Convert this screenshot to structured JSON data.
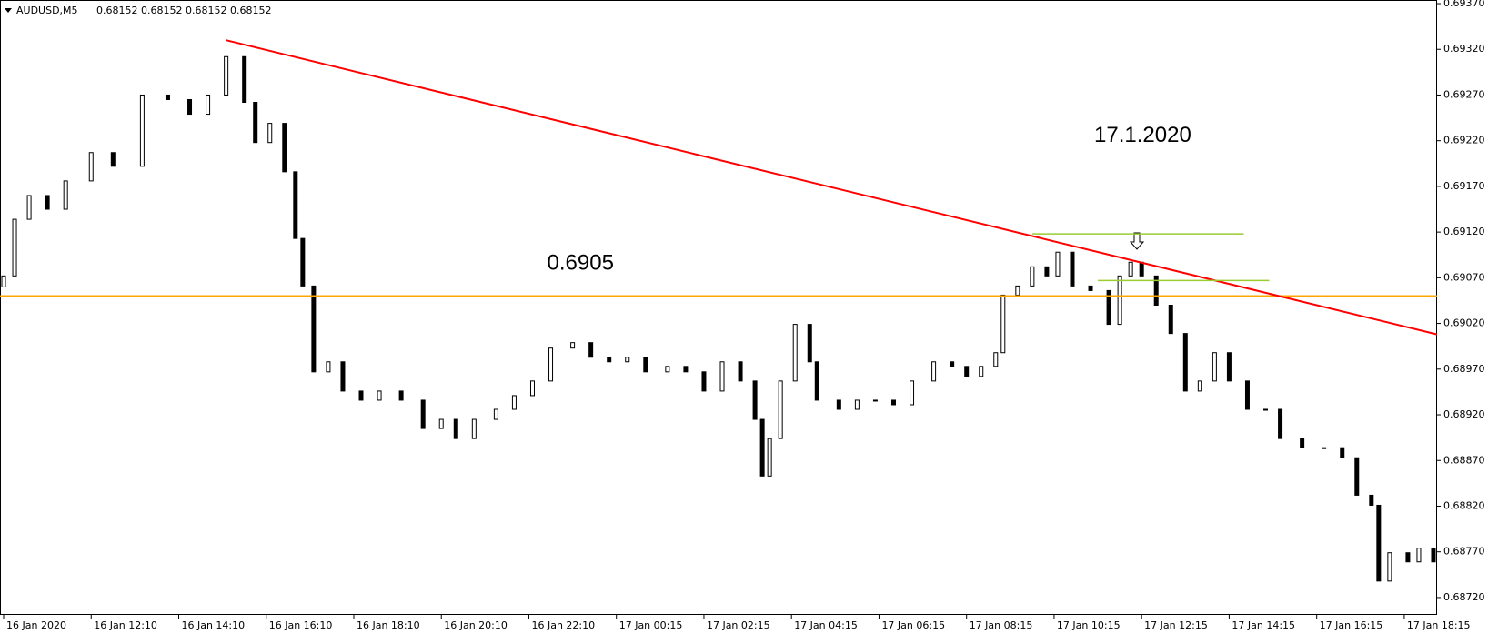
{
  "chart_data": {
    "type": "candlestick",
    "symbol": "AUDUSD,M5",
    "quote": "0.68152 0.68152 0.68152 0.68152",
    "annotations": [
      {
        "text": "17.1.2020",
        "x": 300,
        "y": 0.69225
      },
      {
        "text": "0.6905",
        "x": 150,
        "y": 0.69085
      }
    ],
    "x": [
      1,
      4,
      8,
      13,
      18,
      25,
      31,
      39,
      46,
      52,
      57,
      62,
      67,
      70,
      74,
      78,
      81,
      83,
      86,
      90,
      94,
      99,
      104,
      110,
      116,
      121,
      125,
      130,
      136,
      141,
      146,
      151,
      157,
      162,
      167,
      172,
      177,
      183,
      188,
      193,
      198,
      203,
      207,
      209,
      211,
      214,
      218,
      222,
      224,
      230,
      235,
      240,
      245,
      250,
      256,
      261,
      265,
      269,
      273,
      275,
      279,
      283,
      287,
      290,
      294,
      299,
      304,
      307,
      310,
      313,
      317,
      321,
      325,
      329,
      333,
      337,
      342,
      347,
      351,
      357,
      363,
      368,
      372,
      376,
      378,
      381,
      386,
      389,
      393
    ],
    "open": [
      0.6906,
      0.69072,
      0.69134,
      0.6916,
      0.69145,
      0.69176,
      0.69207,
      0.69192,
      0.6927,
      0.69265,
      0.69249,
      0.6927,
      0.69312,
      0.69262,
      0.69218,
      0.69239,
      0.69186,
      0.69113,
      0.69061,
      0.68967,
      0.68978,
      0.68946,
      0.68936,
      0.68946,
      0.68936,
      0.68905,
      0.68915,
      0.68894,
      0.68915,
      0.68926,
      0.68941,
      0.68957,
      0.68993,
      0.68999,
      0.68983,
      0.68978,
      0.68983,
      0.68967,
      0.68973,
      0.68967,
      0.68946,
      0.68978,
      0.68957,
      0.68915,
      0.68853,
      0.68894,
      0.68957,
      0.69019,
      0.68978,
      0.68936,
      0.68926,
      0.68936,
      0.68936,
      0.68931,
      0.68957,
      0.68978,
      0.68973,
      0.68962,
      0.68973,
      0.68988,
      0.69051,
      0.69061,
      0.69082,
      0.69072,
      0.69098,
      0.69061,
      0.69056,
      0.69019,
      0.69072,
      0.69087,
      0.69072,
      0.6904,
      0.69009,
      0.68946,
      0.68957,
      0.68988,
      0.68957,
      0.68926,
      0.68926,
      0.68894,
      0.68884,
      0.68884,
      0.68873,
      0.68832,
      0.68821,
      0.68738,
      0.68769,
      0.68759,
      0.68774
    ],
    "close": [
      0.69072,
      0.69134,
      0.6916,
      0.69145,
      0.69176,
      0.69207,
      0.69192,
      0.6927,
      0.69265,
      0.69249,
      0.6927,
      0.69312,
      0.69262,
      0.69218,
      0.69239,
      0.69186,
      0.69113,
      0.69061,
      0.68967,
      0.68978,
      0.68946,
      0.68936,
      0.68946,
      0.68936,
      0.68905,
      0.68915,
      0.68894,
      0.68915,
      0.68926,
      0.68941,
      0.68957,
      0.68993,
      0.68999,
      0.68983,
      0.68978,
      0.68983,
      0.68967,
      0.68973,
      0.68967,
      0.68946,
      0.68978,
      0.68957,
      0.68915,
      0.68853,
      0.68894,
      0.68957,
      0.69019,
      0.68978,
      0.68936,
      0.68926,
      0.68936,
      0.68936,
      0.68931,
      0.68957,
      0.68978,
      0.68973,
      0.68962,
      0.68973,
      0.68988,
      0.69051,
      0.69061,
      0.69082,
      0.69072,
      0.69098,
      0.69061,
      0.69056,
      0.69019,
      0.69072,
      0.69087,
      0.69072,
      0.6904,
      0.69009,
      0.68946,
      0.68957,
      0.68988,
      0.68957,
      0.68926,
      0.68926,
      0.68894,
      0.68884,
      0.68884,
      0.68873,
      0.68832,
      0.68821,
      0.68738,
      0.68769,
      0.68759,
      0.68774,
      0.68759
    ],
    "hlines": [
      {
        "value": 0.6905,
        "color": "#ffa500"
      }
    ],
    "trendlines": [
      {
        "x": [
          62,
          394
        ],
        "y": [
          0.6933,
          0.69008
        ],
        "color": "#ff0000",
        "width": 2
      },
      {
        "x": [
          283,
          341
        ],
        "y": [
          0.69118,
          0.69118
        ],
        "color": "#9acd32",
        "width": 1.5
      },
      {
        "x": [
          301,
          348
        ],
        "y": [
          0.69067,
          0.69067
        ],
        "color": "#9acd32",
        "width": 1.5
      }
    ],
    "xlim": [
      0,
      394
    ],
    "ylim": [
      0.68702,
      0.69374
    ],
    "xticks": [
      {
        "value": 1,
        "label": "16 Jan 2020"
      },
      {
        "value": 25,
        "label": "16 Jan 12:10"
      },
      {
        "value": 49,
        "label": "16 Jan 14:10"
      },
      {
        "value": 73,
        "label": "16 Jan 16:10"
      },
      {
        "value": 97,
        "label": "16 Jan 18:10"
      },
      {
        "value": 121,
        "label": "16 Jan 20:10"
      },
      {
        "value": 145,
        "label": "16 Jan 22:10"
      },
      {
        "value": 169,
        "label": "17 Jan 00:15"
      },
      {
        "value": 193,
        "label": "17 Jan 02:15"
      },
      {
        "value": 217,
        "label": "17 Jan 04:15"
      },
      {
        "value": 241,
        "label": "17 Jan 06:15"
      },
      {
        "value": 265,
        "label": "17 Jan 08:15"
      },
      {
        "value": 289,
        "label": "17 Jan 10:15"
      },
      {
        "value": 313,
        "label": "17 Jan 12:15"
      },
      {
        "value": 337,
        "label": "17 Jan 14:15"
      },
      {
        "value": 361,
        "label": "17 Jan 16:15"
      },
      {
        "value": 385,
        "label": "17 Jan 18:15"
      }
    ],
    "yticks": [
      {
        "value": 0.6937,
        "label": "0.69370"
      },
      {
        "value": 0.6932,
        "label": "0.69320"
      },
      {
        "value": 0.6927,
        "label": "0.69270"
      },
      {
        "value": 0.6922,
        "label": "0.69220"
      },
      {
        "value": 0.6917,
        "label": "0.69170"
      },
      {
        "value": 0.6912,
        "label": "0.69120"
      },
      {
        "value": 0.6907,
        "label": "0.69070"
      },
      {
        "value": 0.6902,
        "label": "0.69020"
      },
      {
        "value": 0.6897,
        "label": "0.68970"
      },
      {
        "value": 0.6892,
        "label": "0.68920"
      },
      {
        "value": 0.6887,
        "label": "0.68870"
      },
      {
        "value": 0.6882,
        "label": "0.68820"
      },
      {
        "value": 0.6877,
        "label": "0.68770"
      },
      {
        "value": 0.6872,
        "label": "0.68720"
      }
    ],
    "grid": false
  }
}
